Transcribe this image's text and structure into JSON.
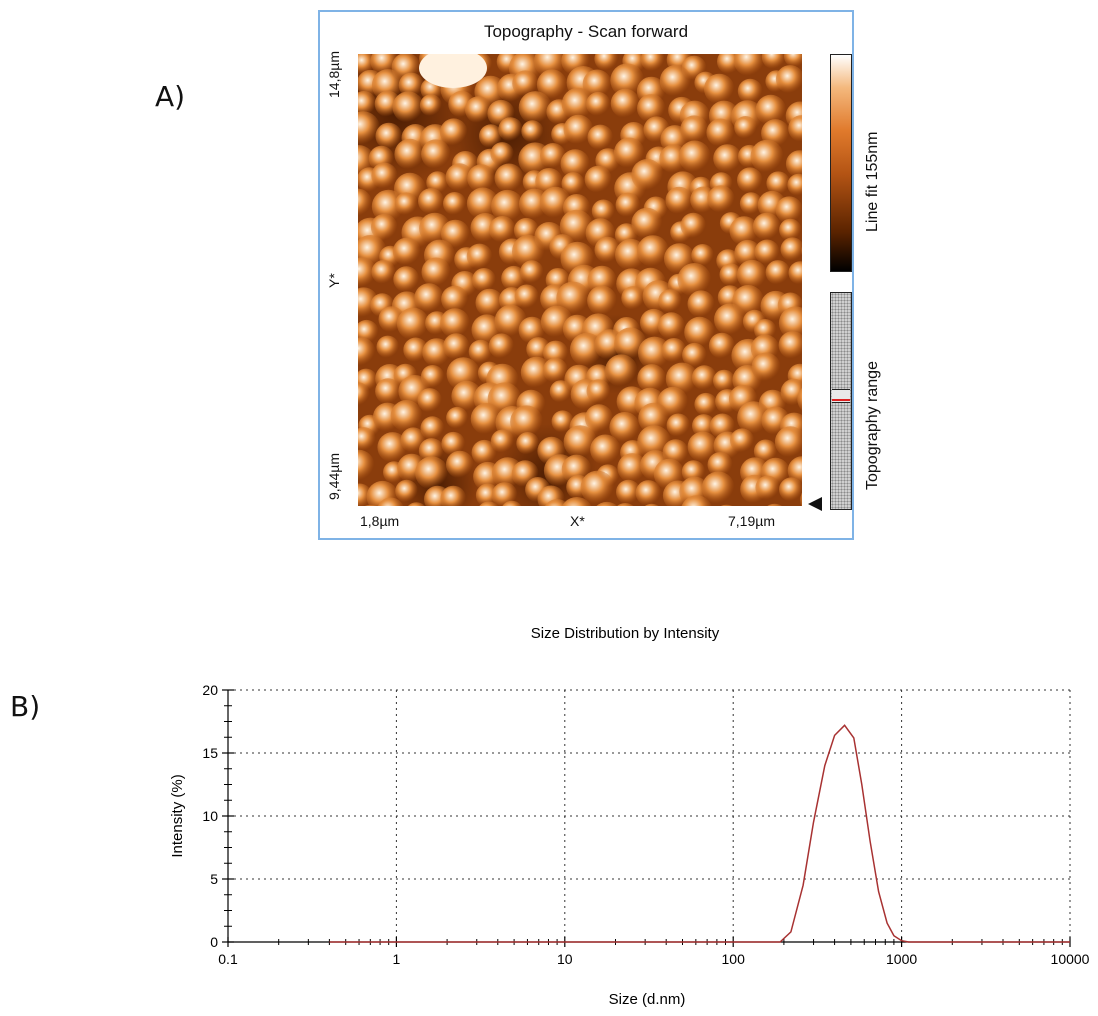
{
  "panels": {
    "a_label": "A)",
    "b_label": "B)"
  },
  "afm": {
    "title": "Topography - Scan forward",
    "y_top_label": "14,8µm",
    "y_axis_label": "Y*",
    "y_bottom_label": "9,44µm",
    "x_left_label": "1,8µm",
    "x_axis_label": "X*",
    "x_right_label": "7,19µm",
    "colorbar_label": "Line fit 155nm",
    "range_label": "Topography range",
    "colors": {
      "frame": "#7fb3e6",
      "base": "#b55a14",
      "grain": "#e69040",
      "highlight": "#fff4e4",
      "dark": "#3a1400"
    }
  },
  "chart_data": {
    "type": "line",
    "title": "Size Distribution by Intensity",
    "xlabel": "Size (d.nm)",
    "ylabel": "Intensity (%)",
    "x_scale": "log",
    "xlim": [
      0.1,
      10000
    ],
    "ylim": [
      0,
      20
    ],
    "x_ticks": [
      "0.1",
      "1",
      "10",
      "100",
      "1000",
      "10000"
    ],
    "y_ticks": [
      "0",
      "5",
      "10",
      "15",
      "20"
    ],
    "grid": true,
    "legend": "none",
    "series": [
      {
        "color": "#a83232",
        "x": [
          0.4,
          1,
          10,
          100,
          190,
          220,
          260,
          300,
          350,
          400,
          459,
          520,
          580,
          650,
          730,
          820,
          900,
          1000,
          1100,
          2000,
          10000
        ],
        "y": [
          0,
          0,
          0,
          0,
          0,
          0.8,
          4.5,
          9.5,
          14.0,
          16.4,
          17.2,
          16.2,
          12.5,
          8.0,
          4.0,
          1.5,
          0.5,
          0.1,
          0,
          0,
          0
        ]
      }
    ]
  }
}
